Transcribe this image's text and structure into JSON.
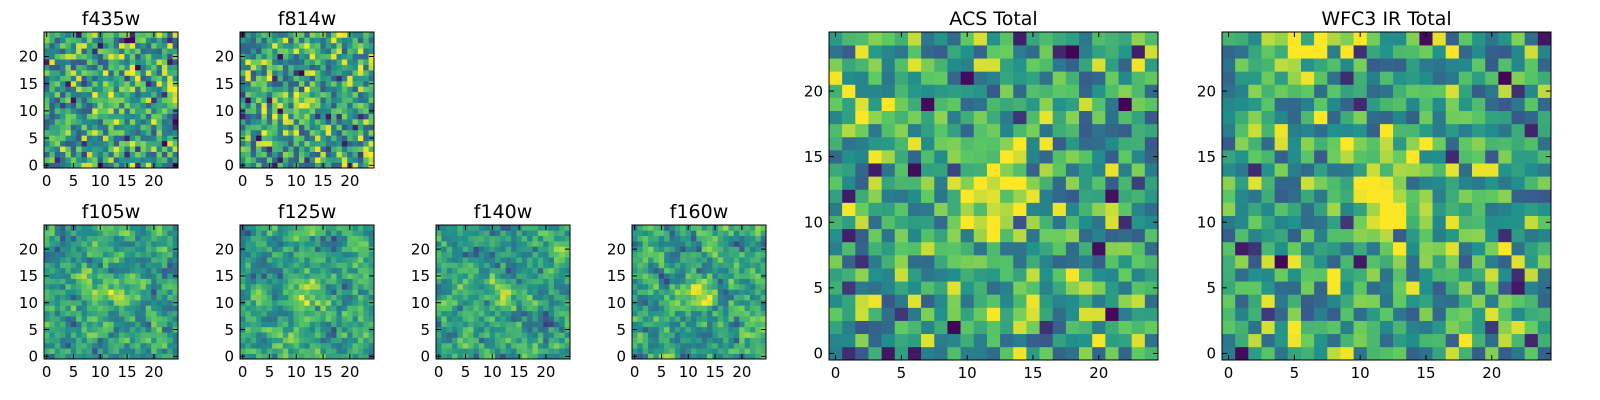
{
  "chart_data": [
    {
      "type": "heatmap",
      "title": "f435w",
      "grid_size": 25,
      "xlim": [
        -0.5,
        24.5
      ],
      "ylim": [
        -0.5,
        24.5
      ],
      "xticks": [
        0,
        5,
        10,
        15,
        20
      ],
      "yticks": [
        0,
        5,
        10,
        15,
        20
      ],
      "seed": 11,
      "smoothing": 0,
      "blobs": [
        {
          "x": 12,
          "y": 12,
          "amp": 0.3,
          "r": 1.5
        }
      ]
    },
    {
      "type": "heatmap",
      "title": "f814w",
      "grid_size": 25,
      "xlim": [
        -0.5,
        24.5
      ],
      "ylim": [
        -0.5,
        24.5
      ],
      "xticks": [
        0,
        5,
        10,
        15,
        20
      ],
      "yticks": [
        0,
        5,
        10,
        15,
        20
      ],
      "seed": 23,
      "smoothing": 0,
      "blobs": [
        {
          "x": 12,
          "y": 12,
          "amp": 0.25,
          "r": 1.5
        }
      ]
    },
    {
      "type": "heatmap",
      "title": "f105w",
      "grid_size": 25,
      "xlim": [
        -0.5,
        24.5
      ],
      "ylim": [
        -0.5,
        24.5
      ],
      "xticks": [
        0,
        5,
        10,
        15,
        20
      ],
      "yticks": [
        0,
        5,
        10,
        15,
        20
      ],
      "seed": 37,
      "smoothing": 1,
      "blobs": [
        {
          "x": 12,
          "y": 12,
          "amp": 0.3,
          "r": 2.0
        }
      ]
    },
    {
      "type": "heatmap",
      "title": "f125w",
      "grid_size": 25,
      "xlim": [
        -0.5,
        24.5
      ],
      "ylim": [
        -0.5,
        24.5
      ],
      "xticks": [
        0,
        5,
        10,
        15,
        20
      ],
      "yticks": [
        0,
        5,
        10,
        15,
        20
      ],
      "seed": 41,
      "smoothing": 1,
      "blobs": [
        {
          "x": 12,
          "y": 12,
          "amp": 0.3,
          "r": 2.0
        }
      ]
    },
    {
      "type": "heatmap",
      "title": "f140w",
      "grid_size": 25,
      "xlim": [
        -0.5,
        24.5
      ],
      "ylim": [
        -0.5,
        24.5
      ],
      "xticks": [
        0,
        5,
        10,
        15,
        20
      ],
      "yticks": [
        0,
        5,
        10,
        15,
        20
      ],
      "seed": 53,
      "smoothing": 1,
      "blobs": [
        {
          "x": 12,
          "y": 12,
          "amp": 0.35,
          "r": 2.0
        }
      ]
    },
    {
      "type": "heatmap",
      "title": "f160w",
      "grid_size": 25,
      "xlim": [
        -0.5,
        24.5
      ],
      "ylim": [
        -0.5,
        24.5
      ],
      "xticks": [
        0,
        5,
        10,
        15,
        20
      ],
      "yticks": [
        0,
        5,
        10,
        15,
        20
      ],
      "seed": 67,
      "smoothing": 1,
      "blobs": [
        {
          "x": 12,
          "y": 12,
          "amp": 0.35,
          "r": 2.0
        }
      ]
    },
    {
      "type": "heatmap",
      "title": "ACS Total",
      "grid_size": 25,
      "xlim": [
        -0.5,
        24.5
      ],
      "ylim": [
        -0.5,
        24.5
      ],
      "xticks": [
        0,
        5,
        10,
        15,
        20
      ],
      "yticks": [
        0,
        5,
        10,
        15,
        20
      ],
      "seed": 79,
      "smoothing": 0,
      "blobs": [
        {
          "x": 12,
          "y": 12,
          "amp": 0.45,
          "r": 2.2
        },
        {
          "x": 3,
          "y": 18,
          "amp": 0.3,
          "r": 1.5
        }
      ]
    },
    {
      "type": "heatmap",
      "title": "WFC3 IR Total",
      "grid_size": 25,
      "xlim": [
        -0.5,
        24.5
      ],
      "ylim": [
        -0.5,
        24.5
      ],
      "xticks": [
        0,
        5,
        10,
        15,
        20
      ],
      "yticks": [
        0,
        5,
        10,
        15,
        20
      ],
      "seed": 97,
      "smoothing": 0,
      "blobs": [
        {
          "x": 12,
          "y": 12,
          "amp": 0.45,
          "r": 2.2
        },
        {
          "x": 5,
          "y": 23,
          "amp": 0.3,
          "r": 2.0
        }
      ]
    }
  ],
  "colormap": [
    "#440154",
    "#3b528b",
    "#21918c",
    "#5ec962",
    "#fde725"
  ]
}
